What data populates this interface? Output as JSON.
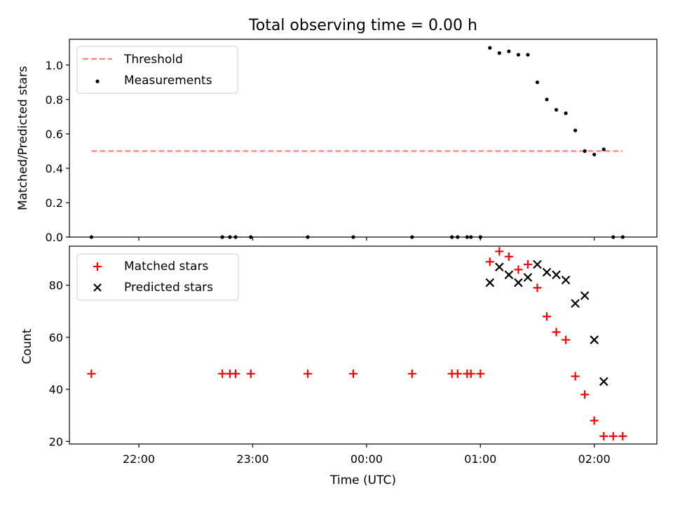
{
  "figure": {
    "title": "Total observing time = 0.00 h",
    "xlabel": "Time (UTC)"
  },
  "chart_data": [
    {
      "type": "scatter",
      "ylabel": "Matched/Predicted stars",
      "ylim": [
        0,
        1.15
      ],
      "yticks": [
        "0.0",
        "0.2",
        "0.4",
        "0.6",
        "0.8",
        "1.0"
      ],
      "ytick_values": [
        0,
        0.2,
        0.4,
        0.6,
        0.8,
        1.0
      ],
      "xlim_hours": [
        21.39,
        26.55
      ],
      "legend_position": "top-left",
      "series": [
        {
          "name": "Threshold",
          "kind": "dashed-line",
          "color": "#ff7f7f",
          "x": [
            "21:35",
            "26:15"
          ],
          "y": [
            0.5,
            0.5
          ]
        },
        {
          "name": "Measurements",
          "kind": "dot",
          "color": "#000000",
          "x": [
            "21:35",
            "22:44",
            "22:48",
            "22:51",
            "22:59",
            "23:29",
            "23:53",
            "00:24",
            "00:45",
            "00:48",
            "00:53",
            "00:55",
            "01:00",
            "01:05",
            "01:10",
            "01:15",
            "01:20",
            "01:25",
            "01:30",
            "01:35",
            "01:40",
            "01:45",
            "01:50",
            "01:55",
            "02:00",
            "02:05",
            "02:10",
            "02:15"
          ],
          "y": [
            0,
            0,
            0,
            0,
            0,
            0,
            0,
            0,
            0,
            0,
            0,
            0,
            0,
            1.1,
            1.07,
            1.08,
            1.06,
            1.06,
            0.9,
            0.8,
            0.74,
            0.72,
            0.62,
            0.5,
            0.48,
            0.51,
            0,
            0
          ]
        }
      ]
    },
    {
      "type": "scatter",
      "ylabel": "Count",
      "ylim": [
        19,
        95
      ],
      "yticks": [
        "20",
        "40",
        "60",
        "80"
      ],
      "ytick_values": [
        20,
        40,
        60,
        80
      ],
      "xlim_hours": [
        21.39,
        26.55
      ],
      "xticks": [
        "22:00",
        "23:00",
        "00:00",
        "01:00",
        "02:00"
      ],
      "xtick_values": [
        "22:00",
        "23:00",
        "00:00",
        "01:00",
        "02:00"
      ],
      "legend_position": "top-left",
      "series": [
        {
          "name": "Matched stars",
          "kind": "plus",
          "color": "#ff0000",
          "x": [
            "21:35",
            "22:44",
            "22:48",
            "22:51",
            "22:59",
            "23:29",
            "23:53",
            "00:24",
            "00:45",
            "00:48",
            "00:53",
            "00:55",
            "01:00",
            "01:05",
            "01:10",
            "01:15",
            "01:20",
            "01:25",
            "01:30",
            "01:35",
            "01:40",
            "01:45",
            "01:50",
            "01:55",
            "02:00",
            "02:05",
            "02:10",
            "02:15"
          ],
          "y": [
            46,
            46,
            46,
            46,
            46,
            46,
            46,
            46,
            46,
            46,
            46,
            46,
            46,
            89,
            93,
            91,
            86,
            88,
            79,
            68,
            62,
            59,
            45,
            38,
            28,
            22,
            22,
            22
          ]
        },
        {
          "name": "Predicted stars",
          "kind": "x",
          "color": "#000000",
          "x": [
            "01:05",
            "01:10",
            "01:15",
            "01:20",
            "01:25",
            "01:30",
            "01:35",
            "01:40",
            "01:45",
            "01:50",
            "01:55",
            "02:00",
            "02:05"
          ],
          "y": [
            81,
            87,
            84,
            81,
            83,
            88,
            85,
            84,
            82,
            73,
            76,
            59,
            43
          ]
        }
      ]
    }
  ]
}
